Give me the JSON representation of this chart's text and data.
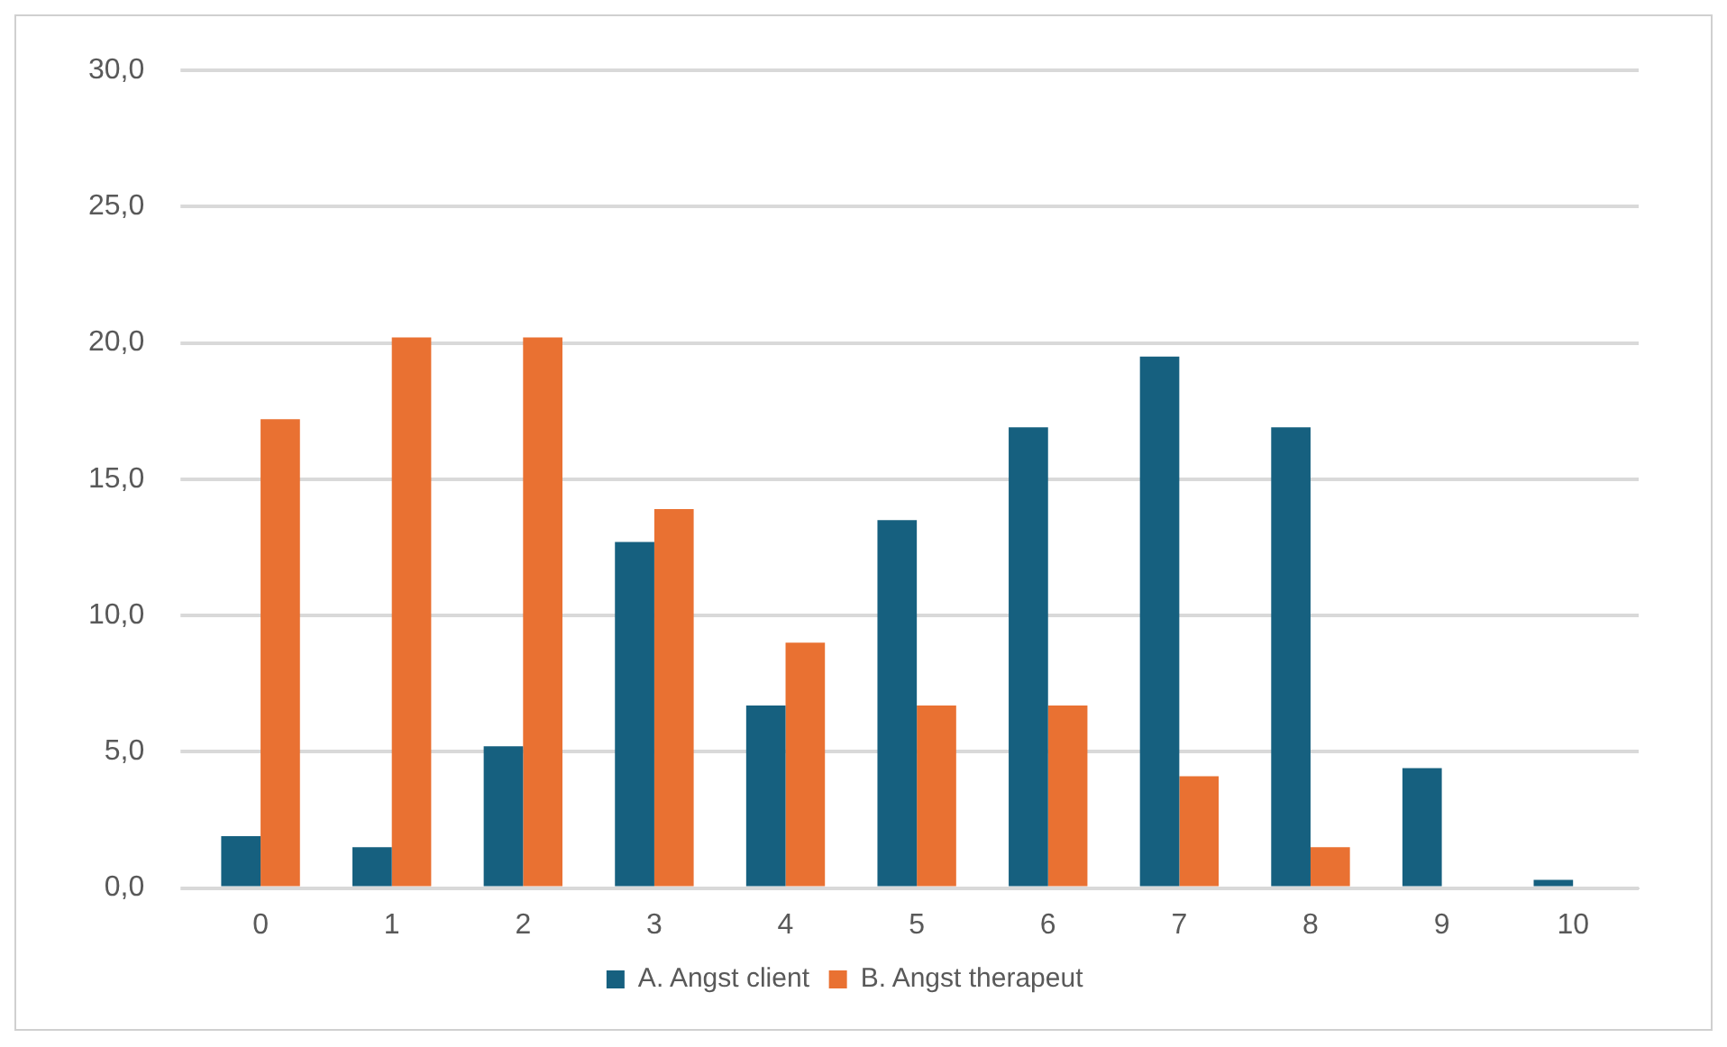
{
  "chart_data": {
    "type": "bar",
    "categories": [
      "0",
      "1",
      "2",
      "3",
      "4",
      "5",
      "6",
      "7",
      "8",
      "9",
      "10"
    ],
    "series": [
      {
        "name": "A. Angst client",
        "color": "#16607f",
        "values": [
          1.9,
          1.5,
          5.2,
          12.7,
          6.7,
          13.5,
          16.9,
          19.5,
          16.9,
          4.4,
          0.3
        ]
      },
      {
        "name": "B. Angst therapeut",
        "color": "#e97132",
        "values": [
          17.2,
          20.2,
          20.2,
          13.9,
          9.0,
          6.7,
          6.7,
          4.1,
          1.5,
          0,
          0
        ]
      }
    ],
    "ylim": [
      0,
      30
    ],
    "yticks": [
      {
        "value": 0,
        "label": "0,0"
      },
      {
        "value": 5,
        "label": "5,0"
      },
      {
        "value": 10,
        "label": "10,0"
      },
      {
        "value": 15,
        "label": "15,0"
      },
      {
        "value": 20,
        "label": "20,0"
      },
      {
        "value": 25,
        "label": "25,0"
      },
      {
        "value": 30,
        "label": "30,0"
      }
    ],
    "grid": "y",
    "legend": "bottom"
  }
}
